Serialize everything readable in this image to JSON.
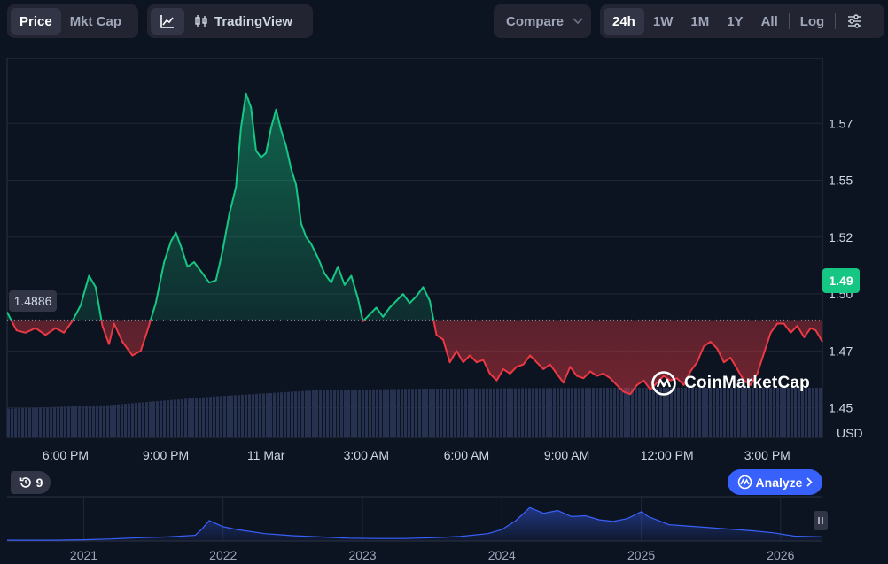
{
  "toolbar": {
    "metric_tabs": [
      {
        "label": "Price",
        "active": true
      },
      {
        "label": "Mkt Cap",
        "active": false
      }
    ],
    "chart_type": {
      "line_icon": "line-chart-icon",
      "tradingview_icon": "candlestick-icon",
      "tradingview_label": "TradingView"
    },
    "compare_label": "Compare",
    "ranges": [
      {
        "label": "24h",
        "active": true
      },
      {
        "label": "1W",
        "active": false
      },
      {
        "label": "1M",
        "active": false
      },
      {
        "label": "1Y",
        "active": false
      },
      {
        "label": "All",
        "active": false
      }
    ],
    "log_label": "Log",
    "settings_icon": "sliders-icon"
  },
  "price_tag": "1.49",
  "reference_tag": "1.4886",
  "brand": {
    "name": "CoinMarketCap",
    "icon": "coinmarketcap-logo-icon"
  },
  "history_badge": {
    "icon": "history-icon",
    "count": "9"
  },
  "analyze_label": "Analyze",
  "colors": {
    "up": "#16c784",
    "down": "#ea3943",
    "accent": "#3861fb",
    "background": "#0d1421"
  },
  "chart_data": [
    {
      "type": "area",
      "currency_label": "USD",
      "baseline": 1.4886,
      "current_price": 1.49,
      "ylim": [
        1.437,
        1.6035
      ],
      "y_ticks": [
        "1.45",
        "1.47",
        "1.50",
        "1.52",
        "1.55",
        "1.57"
      ],
      "y_tick_values": [
        1.45,
        1.475,
        1.5,
        1.525,
        1.55,
        1.575
      ],
      "x_ticks": [
        "6:00 PM",
        "9:00 PM",
        "11 Mar",
        "3:00 AM",
        "6:00 AM",
        "9:00 AM",
        "12:00 PM",
        "3:00 PM"
      ],
      "x_tick_hours": [
        1.75,
        4.75,
        7.75,
        10.75,
        13.75,
        16.75,
        19.75,
        22.75
      ],
      "x_range_hours": [
        0,
        24.4
      ],
      "grid": true,
      "series": [
        {
          "values": [
            [
              0.0,
              1.492
            ],
            [
              0.28,
              1.484
            ],
            [
              0.55,
              1.483
            ],
            [
              0.85,
              1.485
            ],
            [
              1.15,
              1.482
            ],
            [
              1.45,
              1.485
            ],
            [
              1.7,
              1.483
            ],
            [
              1.95,
              1.488
            ],
            [
              2.2,
              1.495
            ],
            [
              2.45,
              1.508
            ],
            [
              2.65,
              1.503
            ],
            [
              2.85,
              1.486
            ],
            [
              3.05,
              1.478
            ],
            [
              3.2,
              1.487
            ],
            [
              3.45,
              1.479
            ],
            [
              3.75,
              1.473
            ],
            [
              4.0,
              1.475
            ],
            [
              4.2,
              1.484
            ],
            [
              4.45,
              1.496
            ],
            [
              4.7,
              1.514
            ],
            [
              4.9,
              1.523
            ],
            [
              5.05,
              1.527
            ],
            [
              5.2,
              1.521
            ],
            [
              5.4,
              1.512
            ],
            [
              5.6,
              1.514
            ],
            [
              5.8,
              1.51
            ],
            [
              6.05,
              1.505
            ],
            [
              6.25,
              1.506
            ],
            [
              6.45,
              1.519
            ],
            [
              6.65,
              1.535
            ],
            [
              6.85,
              1.547
            ],
            [
              7.0,
              1.573
            ],
            [
              7.15,
              1.588
            ],
            [
              7.3,
              1.582
            ],
            [
              7.45,
              1.563
            ],
            [
              7.6,
              1.56
            ],
            [
              7.75,
              1.562
            ],
            [
              7.9,
              1.573
            ],
            [
              8.05,
              1.581
            ],
            [
              8.2,
              1.572
            ],
            [
              8.35,
              1.565
            ],
            [
              8.5,
              1.555
            ],
            [
              8.65,
              1.548
            ],
            [
              8.8,
              1.531
            ],
            [
              8.95,
              1.525
            ],
            [
              9.1,
              1.522
            ],
            [
              9.3,
              1.516
            ],
            [
              9.5,
              1.509
            ],
            [
              9.7,
              1.505
            ],
            [
              9.9,
              1.512
            ],
            [
              10.1,
              1.504
            ],
            [
              10.3,
              1.508
            ],
            [
              10.5,
              1.498
            ],
            [
              10.65,
              1.488
            ],
            [
              10.85,
              1.491
            ],
            [
              11.05,
              1.494
            ],
            [
              11.25,
              1.49
            ],
            [
              11.45,
              1.494
            ],
            [
              11.65,
              1.497
            ],
            [
              11.85,
              1.5
            ],
            [
              12.05,
              1.496
            ],
            [
              12.25,
              1.499
            ],
            [
              12.45,
              1.503
            ],
            [
              12.65,
              1.497
            ],
            [
              12.85,
              1.482
            ],
            [
              13.05,
              1.48
            ],
            [
              13.25,
              1.47
            ],
            [
              13.45,
              1.475
            ],
            [
              13.65,
              1.47
            ],
            [
              13.85,
              1.473
            ],
            [
              14.05,
              1.47
            ],
            [
              14.25,
              1.471
            ],
            [
              14.45,
              1.465
            ],
            [
              14.65,
              1.462
            ],
            [
              14.85,
              1.467
            ],
            [
              15.05,
              1.465
            ],
            [
              15.25,
              1.468
            ],
            [
              15.45,
              1.469
            ],
            [
              15.65,
              1.473
            ],
            [
              15.85,
              1.47
            ],
            [
              16.05,
              1.467
            ],
            [
              16.25,
              1.469
            ],
            [
              16.45,
              1.465
            ],
            [
              16.65,
              1.461
            ],
            [
              16.85,
              1.468
            ],
            [
              17.05,
              1.464
            ],
            [
              17.25,
              1.463
            ],
            [
              17.45,
              1.466
            ],
            [
              17.65,
              1.464
            ],
            [
              17.85,
              1.465
            ],
            [
              18.05,
              1.463
            ],
            [
              18.25,
              1.46
            ],
            [
              18.45,
              1.457
            ],
            [
              18.65,
              1.456
            ],
            [
              18.85,
              1.46
            ],
            [
              19.05,
              1.462
            ],
            [
              19.25,
              1.458
            ],
            [
              19.45,
              1.461
            ],
            [
              19.65,
              1.464
            ],
            [
              19.85,
              1.462
            ],
            [
              20.05,
              1.463
            ],
            [
              20.25,
              1.46
            ],
            [
              20.45,
              1.466
            ],
            [
              20.65,
              1.47
            ],
            [
              20.85,
              1.477
            ],
            [
              21.05,
              1.479
            ],
            [
              21.25,
              1.476
            ],
            [
              21.45,
              1.47
            ],
            [
              21.65,
              1.472
            ],
            [
              21.85,
              1.467
            ],
            [
              22.05,
              1.462
            ],
            [
              22.25,
              1.46
            ],
            [
              22.45,
              1.465
            ],
            [
              22.65,
              1.474
            ],
            [
              22.85,
              1.483
            ],
            [
              23.05,
              1.487
            ],
            [
              23.25,
              1.487
            ],
            [
              23.45,
              1.483
            ],
            [
              23.65,
              1.486
            ],
            [
              23.85,
              1.481
            ],
            [
              24.05,
              1.485
            ],
            [
              24.2,
              1.484
            ],
            [
              24.4,
              1.479
            ]
          ]
        }
      ],
      "volume": {
        "type": "bar",
        "approx_relative_level": [
          0.55,
          0.62,
          0.78,
          0.9,
          0.93,
          0.94,
          0.95,
          0.95,
          0.95
        ]
      }
    },
    {
      "type": "area",
      "role": "navigator",
      "x_ticks": [
        "2021",
        "2022",
        "2023",
        "2024",
        "2025",
        "2026"
      ],
      "x_tick_years": [
        2021,
        2022,
        2023,
        2024,
        2025,
        2026
      ],
      "x_range_years": [
        2020.45,
        2026.3
      ],
      "values": [
        [
          2020.45,
          0.02
        ],
        [
          2020.8,
          0.02
        ],
        [
          2021.0,
          0.03
        ],
        [
          2021.2,
          0.05
        ],
        [
          2021.4,
          0.08
        ],
        [
          2021.6,
          0.1
        ],
        [
          2021.8,
          0.14
        ],
        [
          2021.85,
          0.3
        ],
        [
          2021.9,
          0.5
        ],
        [
          2022.0,
          0.35
        ],
        [
          2022.1,
          0.28
        ],
        [
          2022.3,
          0.18
        ],
        [
          2022.5,
          0.13
        ],
        [
          2022.7,
          0.1
        ],
        [
          2022.9,
          0.07
        ],
        [
          2023.1,
          0.06
        ],
        [
          2023.3,
          0.06
        ],
        [
          2023.5,
          0.08
        ],
        [
          2023.7,
          0.11
        ],
        [
          2023.9,
          0.18
        ],
        [
          2024.0,
          0.28
        ],
        [
          2024.1,
          0.5
        ],
        [
          2024.2,
          0.82
        ],
        [
          2024.3,
          0.68
        ],
        [
          2024.4,
          0.75
        ],
        [
          2024.5,
          0.6
        ],
        [
          2024.6,
          0.62
        ],
        [
          2024.7,
          0.52
        ],
        [
          2024.8,
          0.48
        ],
        [
          2024.9,
          0.55
        ],
        [
          2025.0,
          0.72
        ],
        [
          2025.05,
          0.6
        ],
        [
          2025.2,
          0.4
        ],
        [
          2025.4,
          0.35
        ],
        [
          2025.6,
          0.3
        ],
        [
          2025.8,
          0.25
        ],
        [
          2025.95,
          0.2
        ],
        [
          2026.1,
          0.12
        ],
        [
          2026.3,
          0.1
        ]
      ]
    }
  ]
}
